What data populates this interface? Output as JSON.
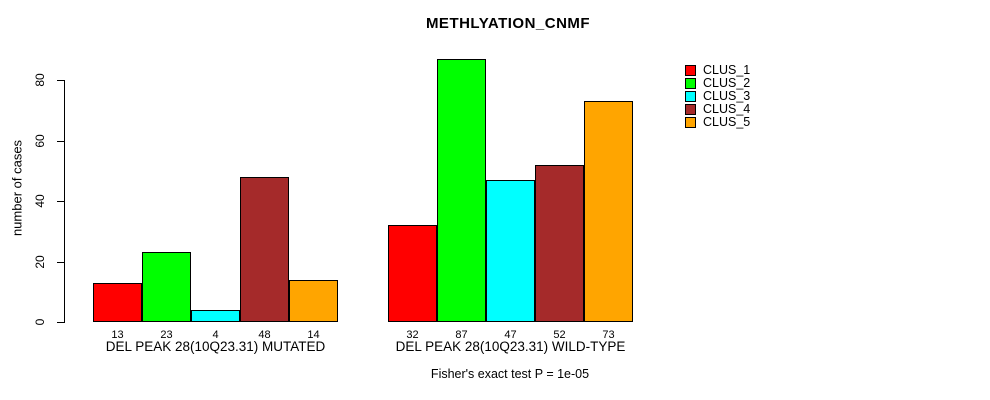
{
  "chart_data": {
    "type": "bar",
    "title": "METHLYATION_CNMF",
    "ylabel": "number of cases",
    "xlabel": "",
    "ylim": [
      0,
      87
    ],
    "y_ticks": [
      0,
      20,
      40,
      60,
      80
    ],
    "grid": false,
    "legend_position": "top-right",
    "annotation": "Fisher's exact test P = 1e-05",
    "series_names": [
      "CLUS_1",
      "CLUS_2",
      "CLUS_3",
      "CLUS_4",
      "CLUS_5"
    ],
    "colors": [
      "#FF0000",
      "#00FF00",
      "#00FFFF",
      "#A52A2A",
      "#FFA500"
    ],
    "groups": [
      {
        "label": "DEL PEAK 28(10Q23.31) MUTATED",
        "values": [
          13,
          23,
          4,
          48,
          14
        ]
      },
      {
        "label": "DEL PEAK 28(10Q23.31) WILD-TYPE",
        "values": [
          32,
          87,
          47,
          52,
          73
        ]
      }
    ],
    "bar_value_labels_shown": true
  }
}
